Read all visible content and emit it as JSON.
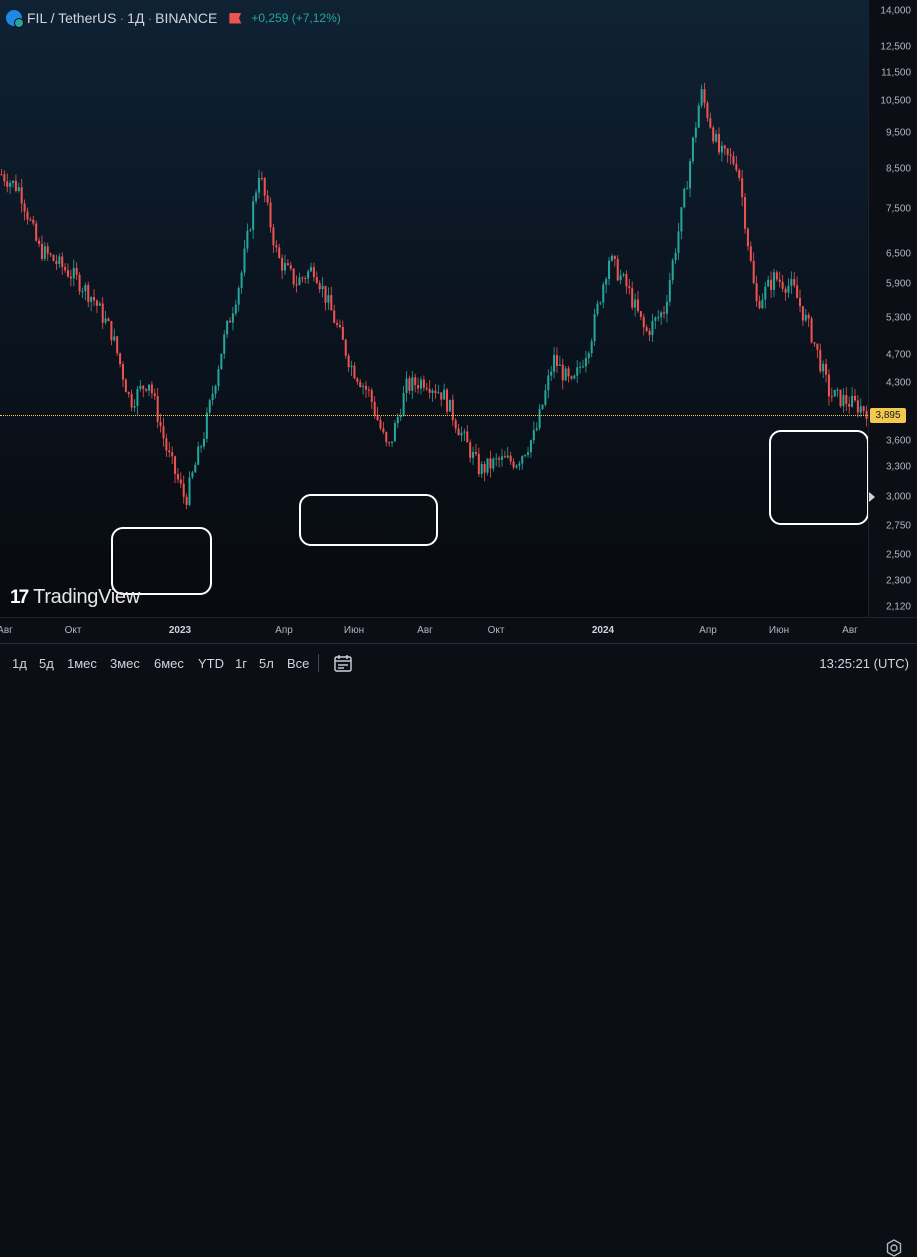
{
  "header": {
    "symbol": "FIL / TetherUS",
    "interval": "1Д",
    "exchange": "BINANCE",
    "change": "+0,259 (+7,12%)"
  },
  "price_axis": {
    "labels": [
      "14,000",
      "12,500",
      "11,500",
      "10,500",
      "9,500",
      "8,500",
      "7,500",
      "6,500",
      "5,900",
      "5,300",
      "4,700",
      "4,300",
      "3,600",
      "3,300",
      "3,000",
      "2,750",
      "2,500",
      "2,300",
      "2,120"
    ]
  },
  "current_price": "3,895",
  "time_axis": {
    "labels": [
      "Авг",
      "Окт",
      "2023",
      "Апр",
      "Июн",
      "Авг",
      "Окт",
      "2024",
      "Апр",
      "Июн",
      "Авг"
    ]
  },
  "watermark": {
    "text": "TradingView",
    "mark": "17"
  },
  "bottom_bar": {
    "timeframes": [
      "1д",
      "5д",
      "1мес",
      "3мес",
      "6мес",
      "YTD",
      "1г",
      "5л",
      "Все"
    ],
    "clock": "13:25:21 (UTC)"
  },
  "colors": {
    "up": "#26a69a",
    "down": "#ef5350",
    "price_line": "#f2c94c",
    "accent": "#1e88e5"
  },
  "icons": [
    "symbol-icon",
    "flag-icon",
    "settings-icon",
    "date-range-icon"
  ],
  "chart_data": {
    "type": "candlestick",
    "symbol": "FIL / TetherUS",
    "interval": "1Д",
    "exchange": "BINANCE",
    "y_scale": "log",
    "ylim": [
      2.05,
      14.3
    ],
    "x": [
      "2022-08",
      "2022-08",
      "2022-09",
      "2022-09",
      "2022-10",
      "2022-10",
      "2022-11",
      "2022-11",
      "2022-12",
      "2022-12",
      "2023-01",
      "2023-01",
      "2023-02",
      "2023-02",
      "2023-03",
      "2023-03",
      "2023-04",
      "2023-04",
      "2023-05",
      "2023-05",
      "2023-06",
      "2023-06",
      "2023-07",
      "2023-07",
      "2023-08",
      "2023-08",
      "2023-09",
      "2023-09",
      "2023-10",
      "2023-10",
      "2023-11",
      "2023-11",
      "2023-12",
      "2023-12",
      "2024-01",
      "2024-01",
      "2024-02",
      "2024-02",
      "2024-03",
      "2024-03",
      "2024-04",
      "2024-04",
      "2024-05",
      "2024-05",
      "2024-06",
      "2024-06",
      "2024-07",
      "2024-07"
    ],
    "close": [
      8.4,
      8.0,
      6.6,
      6.3,
      6.0,
      5.6,
      5.0,
      4.0,
      4.3,
      3.4,
      2.9,
      3.6,
      4.8,
      6.0,
      8.5,
      6.4,
      5.9,
      6.2,
      5.3,
      4.5,
      4.1,
      3.4,
      4.2,
      4.3,
      4.1,
      3.6,
      3.2,
      3.3,
      3.3,
      3.6,
      4.6,
      4.2,
      4.9,
      6.4,
      5.8,
      5.0,
      5.4,
      7.5,
      11.0,
      9.0,
      8.7,
      5.5,
      6.0,
      5.8,
      5.0,
      4.1,
      4.0,
      3.9
    ],
    "close_labels": "approximate two bars per month"
  }
}
